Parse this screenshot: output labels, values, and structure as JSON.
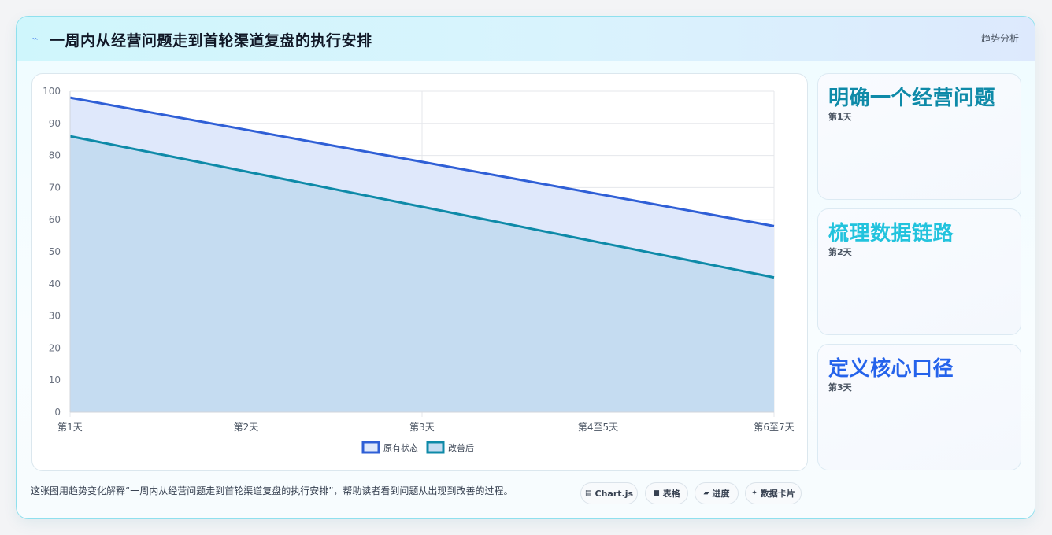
{
  "header": {
    "icon": "lightning-icon",
    "title": "一周内从经营问题走到首轮渠道复盘的执行安排",
    "badge": "趋势分析"
  },
  "chart_data": {
    "type": "area",
    "categories": [
      "第1天",
      "第2天",
      "第3天",
      "第4至5天",
      "第6至7天"
    ],
    "series": [
      {
        "name": "原有状态",
        "values": [
          98,
          88,
          78,
          68,
          58
        ],
        "color": "#2f5fd6",
        "fill": "#dfe8fb"
      },
      {
        "name": "改善后",
        "values": [
          86,
          75,
          64,
          53,
          42
        ],
        "color": "#0e8aa8",
        "fill": "#c5dcf1"
      }
    ],
    "ylim": [
      0,
      100
    ],
    "yticks": [
      0,
      10,
      20,
      30,
      40,
      50,
      60,
      70,
      80,
      90,
      100
    ],
    "grid": true,
    "legend": "bottom"
  },
  "side_cards": [
    {
      "title": "明确一个经营问题",
      "sub": "第1天",
      "color": "#0e8aa8"
    },
    {
      "title": "梳理数据链路",
      "sub": "第2天",
      "color": "#22c3dd"
    },
    {
      "title": "定义核心口径",
      "sub": "第3天",
      "color": "#2563eb"
    }
  ],
  "footer": {
    "text": "这张图用趋势变化解释“一周内从经营问题走到首轮渠道复盘的执行安排”，帮助读者看到问题从出现到改善的过程。",
    "chips": [
      {
        "label": "Chart.js",
        "icon": "table-icon"
      },
      {
        "label": "表格",
        "icon": "square-icon"
      },
      {
        "label": "进度",
        "icon": "parallelogram-icon"
      },
      {
        "label": "数据卡片",
        "icon": "sparkle-icon"
      }
    ]
  }
}
